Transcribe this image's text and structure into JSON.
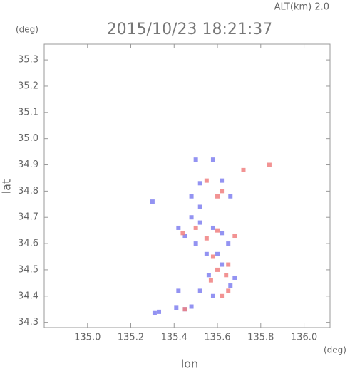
{
  "chart_data": {
    "type": "scatter",
    "title": "2015/10/23 18:21:37",
    "subtitle": "ALT(km) 2.0",
    "x_label": "lon",
    "y_label": "lat",
    "x_unit": "(deg)",
    "y_unit": "(deg)",
    "xlim": [
      134.8,
      136.12
    ],
    "ylim": [
      34.28,
      35.36
    ],
    "xticks": [
      {
        "value": 135,
        "label": "135.0"
      },
      135.2,
      135.4,
      135.6,
      135.8,
      {
        "value": 136,
        "label": "136.0"
      }
    ],
    "yticks": [
      34.3,
      34.4,
      34.5,
      34.6,
      34.7,
      34.8,
      34.9,
      {
        "value": 35,
        "label": "35.0"
      },
      35.1,
      35.2,
      35.3
    ],
    "series": [
      {
        "color": "#8080f0",
        "x": [
          135.31,
          135.33,
          135.45,
          135.41,
          135.48,
          135.42,
          135.52,
          135.58,
          135.66,
          135.68,
          135.56,
          135.62,
          135.55,
          135.5,
          135.45,
          135.52,
          135.58,
          135.62,
          135.42,
          135.48,
          135.52,
          135.48,
          135.52,
          135.5,
          135.62,
          135.66,
          135.58,
          135.3,
          135.65,
          135.6
        ],
        "values": [
          34.335,
          34.34,
          34.35,
          34.355,
          34.36,
          34.42,
          34.42,
          34.4,
          34.44,
          34.47,
          34.48,
          34.52,
          34.56,
          34.6,
          34.63,
          34.68,
          34.66,
          34.64,
          34.66,
          34.7,
          34.74,
          34.78,
          34.83,
          34.92,
          34.84,
          34.78,
          34.92,
          34.76,
          34.6,
          34.56
        ]
      },
      {
        "color": "#f08080",
        "x": [
          135.45,
          135.62,
          135.65,
          135.6,
          135.64,
          135.58,
          135.55,
          135.6,
          135.5,
          135.44,
          135.62,
          135.6,
          135.72,
          135.84,
          135.55,
          135.68,
          135.65,
          135.57
        ],
        "values": [
          34.35,
          34.4,
          34.42,
          34.5,
          34.48,
          34.55,
          34.62,
          34.65,
          34.66,
          34.64,
          34.8,
          34.78,
          34.88,
          34.9,
          34.84,
          34.63,
          34.52,
          34.46
        ]
      }
    ]
  }
}
